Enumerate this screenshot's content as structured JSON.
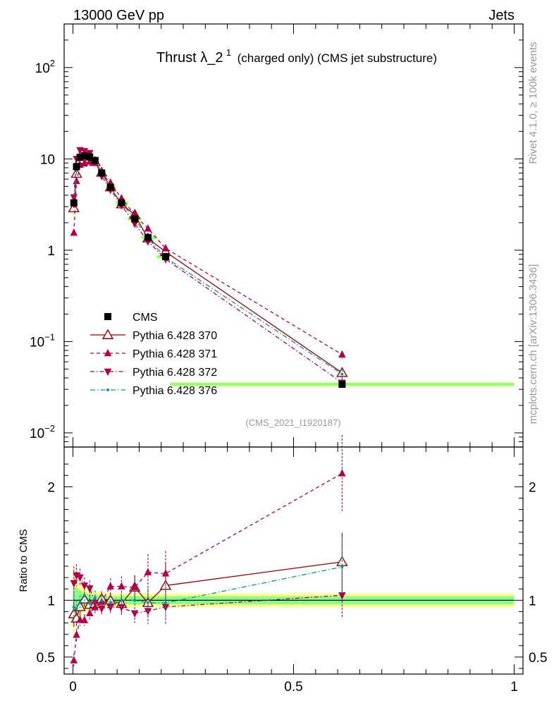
{
  "header": {
    "left": "13000 GeV pp",
    "right": "Jets"
  },
  "title": {
    "main": "Thrust λ_2",
    "sup": "1",
    "sub": "(charged only) (CMS jet substructure)"
  },
  "watermark": "(CMS_2021_I1920187)",
  "side": {
    "top": "Rivet 4.1.0, ≥ 100k events",
    "bottom": "mcplots.cern.ch [arXiv:1306.3436]"
  },
  "ylabel_ratio": "Ratio to CMS",
  "upper_ticks": [
    {
      "value": 0.01,
      "base": "10",
      "exp": "−2"
    },
    {
      "value": 0.1,
      "base": "10",
      "exp": "−1"
    },
    {
      "value": 1,
      "base": "1",
      "exp": ""
    },
    {
      "value": 10,
      "base": "10",
      "exp": ""
    },
    {
      "value": 100,
      "base": "10",
      "exp": "2"
    }
  ],
  "ratio_ticks": [
    {
      "value": 0.5,
      "label": "0.5"
    },
    {
      "value": 1,
      "label": "1"
    },
    {
      "value": 2,
      "label": "2"
    }
  ],
  "x_ticks": [
    {
      "value": 0,
      "label": "0"
    },
    {
      "value": 0.5,
      "label": "0.5"
    },
    {
      "value": 1,
      "label": "1"
    }
  ],
  "chart_data": {
    "type": "line",
    "xlim": [
      -0.02,
      1.02
    ],
    "ylim_upper": [
      0.007,
      300
    ],
    "ylim_ratio": [
      0.35,
      2.35
    ],
    "x": [
      0.002,
      0.008,
      0.016,
      0.026,
      0.038,
      0.05,
      0.065,
      0.085,
      0.11,
      0.14,
      0.17,
      0.21,
      0.61
    ],
    "data": {
      "name": "CMS",
      "values": [
        3.3,
        8.2,
        10.4,
        10.8,
        10.5,
        9.6,
        7.0,
        4.9,
        3.3,
        2.2,
        1.38,
        0.85,
        0.034
      ],
      "err_rel": [
        0.12,
        0.08,
        0.06,
        0.05,
        0.05,
        0.05,
        0.05,
        0.05,
        0.05,
        0.06,
        0.06,
        0.06,
        0.08
      ],
      "band_rel": [
        0.28,
        0.18,
        0.14,
        0.1,
        0.09,
        0.08,
        0.07,
        0.06,
        0.06,
        0.06,
        0.06,
        0.06,
        0.06
      ]
    },
    "series": [
      {
        "name": "Pythia 6.428 370",
        "color": "#990000",
        "dash": "",
        "marker": "open-triangle-up",
        "values": [
          2.9,
          6.9,
          9.8,
          10.9,
          10.1,
          9.3,
          7.1,
          4.9,
          3.2,
          2.45,
          1.35,
          0.96,
          0.0455
        ],
        "err_rel": [
          0.08,
          0.05,
          0.04,
          0.04,
          0.04,
          0.04,
          0.04,
          0.04,
          0.05,
          0.06,
          0.08,
          0.11,
          0.12
        ]
      },
      {
        "name": "Pythia 6.428 371",
        "color": "#b3004d",
        "dash": "5,4",
        "marker": "filled-triangle-up",
        "values": [
          1.55,
          5.7,
          8.6,
          8.9,
          9.3,
          9.0,
          6.9,
          5.5,
          3.7,
          2.45,
          1.72,
          1.05,
          0.072
        ],
        "err_rel": [
          0.08,
          0.05,
          0.04,
          0.04,
          0.04,
          0.04,
          0.04,
          0.04,
          0.05,
          0.06,
          0.08,
          0.1,
          0.1
        ]
      },
      {
        "name": "Pythia 6.428 372",
        "color": "#b3004d",
        "dash": "6,3,1.5,3",
        "marker": "filled-triangle-down",
        "values": [
          3.8,
          10.0,
          12.5,
          12.2,
          11.6,
          9.4,
          6.5,
          4.6,
          3.1,
          1.95,
          1.25,
          0.8,
          0.0355
        ],
        "err_rel": [
          0.08,
          0.05,
          0.04,
          0.04,
          0.04,
          0.04,
          0.04,
          0.04,
          0.05,
          0.06,
          0.08,
          0.1,
          0.12
        ]
      },
      {
        "name": "Pythia 6.428 376",
        "color": "#009999",
        "dash": "7,3,1.5,3",
        "marker": "dot",
        "values": [
          3.1,
          7.6,
          10.2,
          11.2,
          10.2,
          9.8,
          7.0,
          4.8,
          3.3,
          2.2,
          1.35,
          0.83,
          0.044
        ],
        "err_rel": [
          0.08,
          0.05,
          0.04,
          0.04,
          0.04,
          0.04,
          0.04,
          0.04,
          0.05,
          0.06,
          0.08,
          0.1,
          0.12
        ]
      }
    ]
  }
}
